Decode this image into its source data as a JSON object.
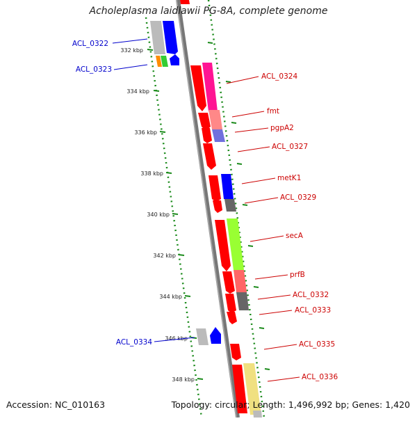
{
  "title": "Acholeplasma laidlawii PG-8A, complete genome",
  "accession": "Accession: NC_010163",
  "topology": "Topology: circular; Length: 1,496,992 bp; Genes: 1,420",
  "colors": {
    "backbone": "#777777",
    "dotted_ring": "#1a8a1a",
    "gene_red": "#ff0000",
    "label_red": "#cc0000",
    "label_blue": "#0000cc",
    "blue": "#0000ff",
    "gray": "#666666",
    "light_gray": "#bbbbbb",
    "pink": "#ff6666",
    "magenta": "#ff1493",
    "lime": "#99ff33",
    "lavender": "#7070dd",
    "khaki": "#f0e080"
  },
  "kbp_ticks": [
    "332 kbp",
    "334 kbp",
    "336 kbp",
    "338 kbp",
    "340 kbp",
    "342 kbp",
    "344 kbp",
    "346 kbp",
    "348 kbp"
  ],
  "gene_labels": {
    "left": [
      "ACL_0322",
      "ACL_0323",
      "ACL_0334"
    ],
    "right": [
      "ACL_0324",
      "fmt",
      "pgpA2",
      "ACL_0327",
      "metK1",
      "ACL_0329",
      "secA",
      "prfB",
      "ACL_0332",
      "ACL_0333",
      "ACL_0335",
      "ACL_0336"
    ]
  }
}
